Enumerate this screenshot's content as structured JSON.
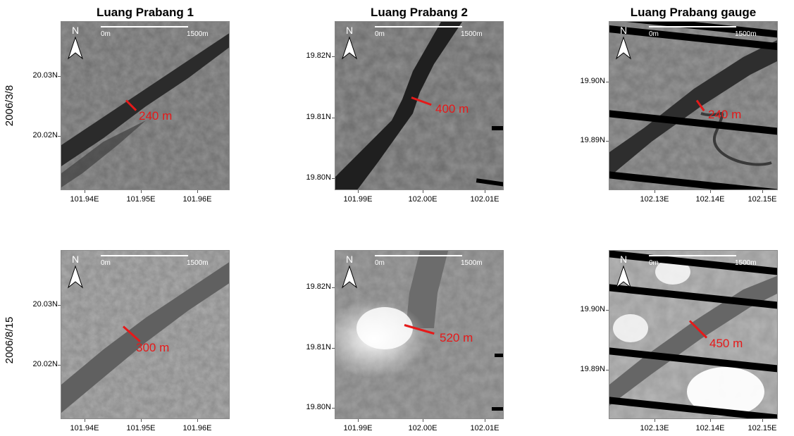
{
  "columns": [
    {
      "title": "Luang Prabang 1",
      "xticks": [
        "101.94E",
        "101.95E",
        "101.96E"
      ],
      "yticks": [
        "20.03N",
        "20.02N"
      ]
    },
    {
      "title": "Luang Prabang 2",
      "xticks": [
        "101.99E",
        "102.00E",
        "102.01E"
      ],
      "yticks": [
        "19.82N",
        "19.81N",
        "19.80N"
      ]
    },
    {
      "title": "Luang Prabang gauge",
      "xticks": [
        "102.13E",
        "102.14E",
        "102.15E"
      ],
      "yticks": [
        "19.90N",
        "19.89N"
      ]
    }
  ],
  "rows": [
    "2006/3/8",
    "2006/8/15"
  ],
  "north_label": "N",
  "scale": {
    "start": "0m",
    "end": "1500m"
  },
  "widths": [
    [
      "240 m",
      "400 m",
      "240 m"
    ],
    [
      "300 m",
      "520 m",
      "450 m"
    ]
  ],
  "colors": {
    "measure": "#e61919",
    "scalebar": "#ffffff"
  }
}
